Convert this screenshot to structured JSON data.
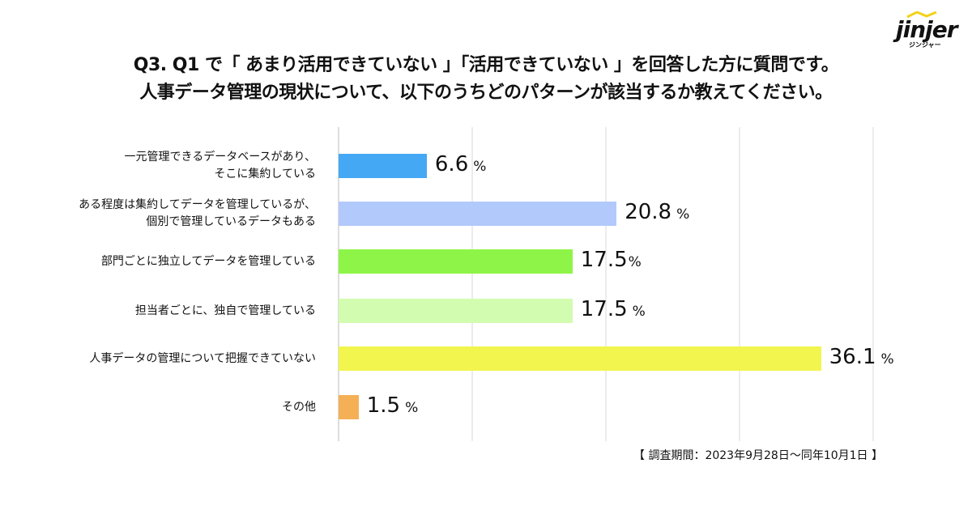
{
  "logo": {
    "word": "jinjer",
    "sub": "ジンジャー"
  },
  "title_line1": "Q3. Q1 で「 あまり活用できていない 」「活用できていない 」を回答した方に質問です。",
  "title_line2": "人事データ管理の現状について、以下のうちどのパターンが該当するか教えてください。",
  "footnote": "【 調査期間：2023年9月28日〜同年10月1日 】",
  "chart_data": {
    "type": "bar",
    "orientation": "horizontal",
    "title": "人事データ管理の現状",
    "unit": "%",
    "xlim": [
      0,
      40
    ],
    "grid": true,
    "categories": [
      "一元管理できるデータベースがあり、\nそこに集約している",
      "ある程度は集約してデータを管理しているが、\n個別で管理しているデータもある",
      "部門ごとに独立してデータを管理している",
      "担当者ごとに、独自で管理している",
      "人事データの管理について把握できていない",
      "その他"
    ],
    "values": [
      6.6,
      20.8,
      17.5,
      17.5,
      36.1,
      1.5
    ],
    "value_labels": [
      "6.6",
      "20.8",
      "17.5",
      "17.5",
      "36.1",
      "1.5"
    ],
    "colors": [
      "#45a8f5",
      "#b2c9fb",
      "#8ef548",
      "#d2fcb0",
      "#f2f54d",
      "#f5b055"
    ]
  }
}
